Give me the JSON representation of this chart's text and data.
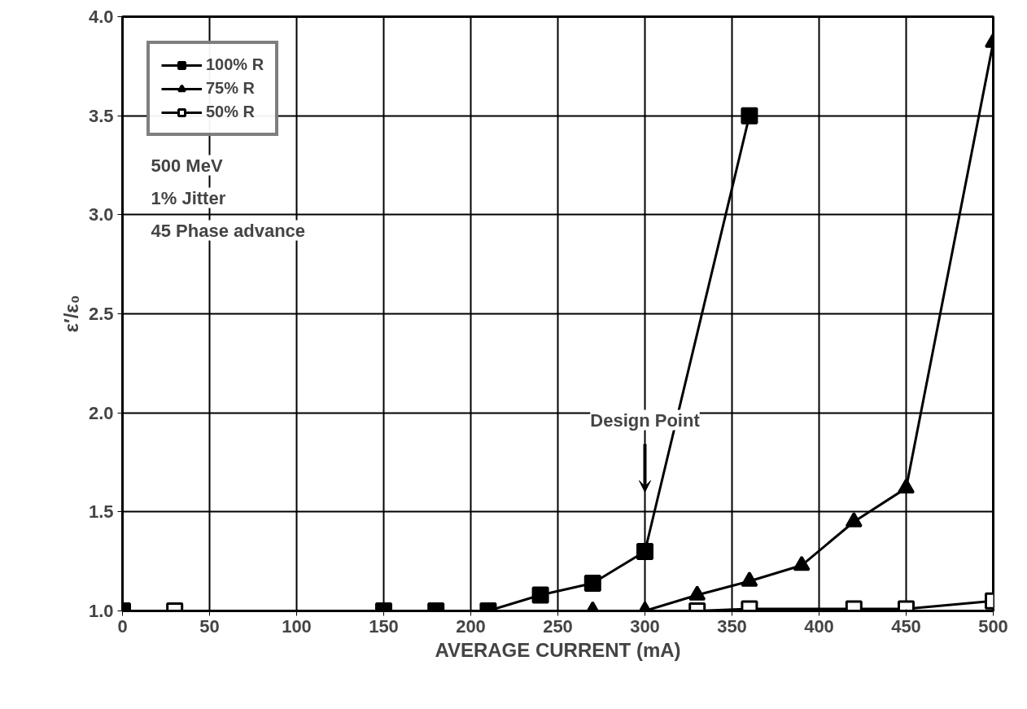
{
  "chart_data": {
    "type": "line",
    "xlabel": "AVERAGE CURRENT (mA)",
    "ylabel": "ε′/ε₀",
    "xlim": [
      0,
      500
    ],
    "ylim": [
      1.0,
      4.0
    ],
    "xticks": [
      0,
      50,
      100,
      150,
      200,
      250,
      300,
      350,
      400,
      450,
      500
    ],
    "yticks": [
      {
        "value": 1.0,
        "label": "1.0"
      },
      {
        "value": 1.5,
        "label": "1.5"
      },
      {
        "value": 2.0,
        "label": "2.0"
      },
      {
        "value": 2.5,
        "label": "2.5"
      },
      {
        "value": 3.0,
        "label": "3.0"
      },
      {
        "value": 3.5,
        "label": "3.5"
      },
      {
        "value": 4.0,
        "label": "4.0"
      }
    ],
    "grid": true,
    "legend": "top left",
    "line_style": "solid",
    "series": [
      {
        "name": "100% R",
        "color": "#000000",
        "marker": "square",
        "x": [
          0,
          150,
          180,
          210,
          240,
          270,
          300,
          360
        ],
        "values": [
          1.0,
          1.0,
          1.0,
          1.0,
          1.08,
          1.14,
          1.3,
          3.5
        ]
      },
      {
        "name": "75% R",
        "color": "#000000",
        "marker": "triangle",
        "x": [
          270,
          300,
          330,
          360,
          390,
          420,
          450,
          500
        ],
        "values": [
          1.0,
          1.0,
          1.08,
          1.15,
          1.23,
          1.45,
          1.62,
          3.87
        ]
      },
      {
        "name": "50% R",
        "color": "#000000",
        "marker": "square",
        "x": [
          30,
          330,
          360,
          420,
          450,
          500
        ],
        "values": [
          1.0,
          1.0,
          1.01,
          1.01,
          1.01,
          1.05
        ]
      }
    ],
    "annotations": [
      "Design Point",
      "500 MeV",
      "  1% Jitter",
      " 45  Phase advance"
    ]
  }
}
